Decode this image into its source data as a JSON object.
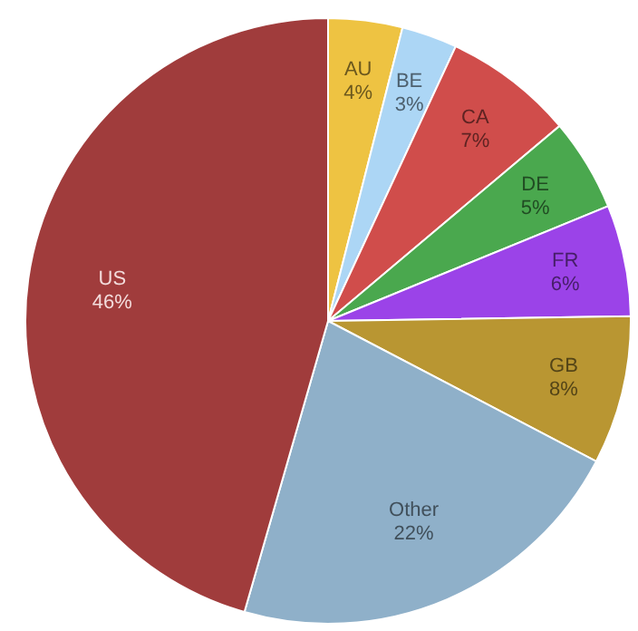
{
  "chart_data": {
    "type": "pie",
    "categories": [
      "AU",
      "BE",
      "CA",
      "DE",
      "FR",
      "GB",
      "Other",
      "US"
    ],
    "values": [
      4,
      3,
      7,
      5,
      6,
      8,
      22,
      46
    ],
    "value_labels": [
      "4%",
      "3%",
      "7%",
      "5%",
      "6%",
      "8%",
      "22%",
      "46%"
    ],
    "colors": [
      "#eec342",
      "#acd6f5",
      "#d04d4b",
      "#4aa84e",
      "#9b43e8",
      "#b99632",
      "#8fb0c9",
      "#a03c3c"
    ],
    "legend": false
  }
}
